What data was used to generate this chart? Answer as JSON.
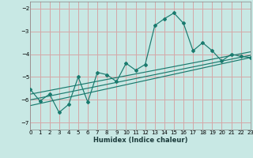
{
  "xlabel": "Humidex (Indice chaleur)",
  "bg_color": "#c8e8e4",
  "grid_color": "#d4a8a8",
  "line_color": "#1a7a6e",
  "xlim": [
    0,
    23
  ],
  "ylim": [
    -7.3,
    -1.7
  ],
  "yticks": [
    -7,
    -6,
    -5,
    -4,
    -3,
    -2
  ],
  "xticks": [
    0,
    1,
    2,
    3,
    4,
    5,
    6,
    7,
    8,
    9,
    10,
    11,
    12,
    13,
    14,
    15,
    16,
    17,
    18,
    19,
    20,
    21,
    22,
    23
  ],
  "curve_x": [
    0,
    1,
    2,
    3,
    4,
    5,
    6,
    7,
    8,
    9,
    10,
    11,
    12,
    13,
    14,
    15,
    16,
    17,
    18,
    19,
    20,
    21,
    22,
    23
  ],
  "curve_y": [
    -5.55,
    -6.05,
    -5.75,
    -6.55,
    -6.2,
    -5.0,
    -6.1,
    -4.8,
    -4.9,
    -5.2,
    -4.4,
    -4.7,
    -4.45,
    -2.75,
    -2.45,
    -2.2,
    -2.65,
    -3.85,
    -3.5,
    -3.85,
    -4.3,
    -4.0,
    -4.1,
    -4.15
  ],
  "reg_lines": [
    {
      "x": [
        0,
        23
      ],
      "y": [
        -5.75,
        -3.9
      ]
    },
    {
      "x": [
        0,
        23
      ],
      "y": [
        -6.0,
        -4.05
      ]
    },
    {
      "x": [
        0,
        23
      ],
      "y": [
        -6.25,
        -4.15
      ]
    }
  ]
}
